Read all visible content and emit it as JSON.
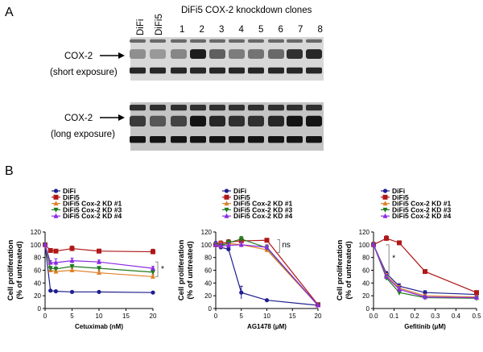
{
  "panel_a": {
    "label": "A",
    "lane_labels": [
      "DiFi",
      "DiFi5"
    ],
    "clone_header": "DiFi5 COX-2 knockdown clones",
    "clone_numbers": [
      "1",
      "2",
      "3",
      "4",
      "5",
      "6",
      "7",
      "8"
    ],
    "blot_short": {
      "line1": "COX-2",
      "line2": "(short exposure)"
    },
    "blot_long": {
      "line1": "COX-2",
      "line2": "(long exposure)"
    },
    "short_band_intensity": [
      0.3,
      0.25,
      0.35,
      0.9,
      0.55,
      0.4,
      0.45,
      0.5,
      0.8,
      0.85
    ],
    "long_band_intensity": [
      0.75,
      0.6,
      0.7,
      0.95,
      0.85,
      0.8,
      0.8,
      0.85,
      0.95,
      0.95
    ]
  },
  "panel_b": {
    "label": "B"
  },
  "chart_data": [
    {
      "type": "line",
      "xlabel": "Cetuximab (nM)",
      "ylabel_line1": "Cell proliferation",
      "ylabel_line2": "(% of untreated)",
      "xlim": [
        0,
        20
      ],
      "ylim": [
        0,
        120
      ],
      "xticks": [
        0,
        5,
        10,
        15,
        20
      ],
      "yticks": [
        0,
        20,
        40,
        60,
        80,
        100,
        120
      ],
      "x": [
        0,
        1,
        2,
        5,
        10,
        20
      ],
      "legend": [
        "DiFi",
        "DiFi5",
        "DiFi5 Cox-2 KD #1",
        "DiFi5 Cox-2 KD #3",
        "DiFi5 Cox-2 KD #4"
      ],
      "series": [
        {
          "name": "DiFi",
          "color": "#1f1f8f",
          "values": [
            100,
            28,
            27,
            26,
            26,
            25
          ],
          "err": [
            2,
            1,
            1,
            1,
            1,
            1
          ]
        },
        {
          "name": "DiFi5",
          "color": "#b01818",
          "values": [
            100,
            91,
            90,
            94,
            90,
            89
          ],
          "err": [
            2,
            3,
            2,
            4,
            3,
            4
          ]
        },
        {
          "name": "DiFi5 Cox-2 KD #1",
          "color": "#e0812a",
          "values": [
            100,
            60,
            58,
            60,
            56,
            50
          ],
          "err": [
            2,
            3,
            3,
            3,
            3,
            3
          ]
        },
        {
          "name": "DiFi5 Cox-2 KD #3",
          "color": "#1f7a1f",
          "values": [
            100,
            63,
            62,
            66,
            63,
            57
          ],
          "err": [
            2,
            3,
            3,
            3,
            3,
            3
          ]
        },
        {
          "name": "DiFi5 Cox-2 KD #4",
          "color": "#8a2be2",
          "values": [
            100,
            72,
            72,
            75,
            73,
            63
          ],
          "err": [
            2,
            3,
            6,
            4,
            3,
            3
          ]
        }
      ],
      "annotation": "*"
    },
    {
      "type": "line",
      "xlabel": "AG1478 (μM)",
      "ylabel_line1": "Cell proliferation",
      "ylabel_line2": "(% of untreated)",
      "xlim": [
        0,
        20
      ],
      "ylim": [
        0,
        120
      ],
      "xticks": [
        0,
        5,
        10,
        15,
        20
      ],
      "yticks": [
        0,
        20,
        40,
        60,
        80,
        100,
        120
      ],
      "x": [
        0,
        1,
        2.5,
        5,
        10,
        20
      ],
      "legend": [
        "DiFi",
        "DiFi5",
        "DiFi5 Cox-2 KD #1",
        "DiFi5 Cox-2 KD #3",
        "DiFi5 Cox-2 KD #4"
      ],
      "series": [
        {
          "name": "DiFi",
          "color": "#1f1f8f",
          "values": [
            100,
            96,
            93,
            25,
            13,
            5
          ],
          "err": [
            5,
            3,
            3,
            10,
            1,
            1
          ]
        },
        {
          "name": "DiFi5",
          "color": "#b01818",
          "values": [
            100,
            102,
            104,
            106,
            107,
            6
          ],
          "err": [
            4,
            4,
            4,
            4,
            3,
            1
          ]
        },
        {
          "name": "DiFi5 Cox-2 KD #1",
          "color": "#e0812a",
          "values": [
            100,
            100,
            102,
            100,
            92,
            5
          ],
          "err": [
            4,
            4,
            4,
            4,
            4,
            1
          ]
        },
        {
          "name": "DiFi5 Cox-2 KD #3",
          "color": "#1f7a1f",
          "values": [
            100,
            98,
            103,
            109,
            95,
            5
          ],
          "err": [
            4,
            4,
            4,
            4,
            4,
            1
          ]
        },
        {
          "name": "DiFi5 Cox-2 KD #4",
          "color": "#8a2be2",
          "values": [
            100,
            98,
            99,
            100,
            96,
            5
          ],
          "err": [
            4,
            4,
            4,
            4,
            4,
            1
          ]
        }
      ],
      "annotation": "ns"
    },
    {
      "type": "line",
      "xlabel": "Gefitinib (μM)",
      "ylabel_line1": "Cell proliferation",
      "ylabel_line2": "(% of untreated)",
      "xlim": [
        0,
        0.5
      ],
      "ylim": [
        0,
        120
      ],
      "xticks": [
        0.0,
        0.1,
        0.2,
        0.3,
        0.4,
        0.5
      ],
      "xtick_labels": [
        "0.0",
        "0.1",
        "0.2",
        "0.3",
        "0.4",
        "0.5"
      ],
      "yticks": [
        0,
        20,
        40,
        60,
        80,
        100,
        120
      ],
      "x": [
        0,
        0.0625,
        0.125,
        0.25,
        0.5
      ],
      "legend": [
        "DiFi",
        "DiFi5",
        "DiFi5 Cox-2 KD #1",
        "DiFi5 Cox-2 KD #3",
        "DiFi5 Cox-2 KD #4"
      ],
      "series": [
        {
          "name": "DiFi",
          "color": "#1f1f8f",
          "values": [
            100,
            55,
            35,
            25,
            22
          ],
          "err": [
            3,
            3,
            4,
            3,
            2
          ]
        },
        {
          "name": "DiFi5",
          "color": "#b01818",
          "values": [
            100,
            110,
            103,
            58,
            25
          ],
          "err": [
            4,
            4,
            3,
            2,
            2
          ]
        },
        {
          "name": "DiFi5 Cox-2 KD #1",
          "color": "#e0812a",
          "values": [
            100,
            52,
            32,
            20,
            18
          ],
          "err": [
            3,
            3,
            4,
            2,
            2
          ]
        },
        {
          "name": "DiFi5 Cox-2 KD #3",
          "color": "#1f7a1f",
          "values": [
            100,
            48,
            25,
            17,
            16
          ],
          "err": [
            3,
            3,
            4,
            2,
            2
          ]
        },
        {
          "name": "DiFi5 Cox-2 KD #4",
          "color": "#8a2be2",
          "values": [
            100,
            50,
            30,
            18,
            17
          ],
          "err": [
            3,
            3,
            4,
            2,
            2
          ]
        }
      ],
      "annotation": "*"
    }
  ]
}
